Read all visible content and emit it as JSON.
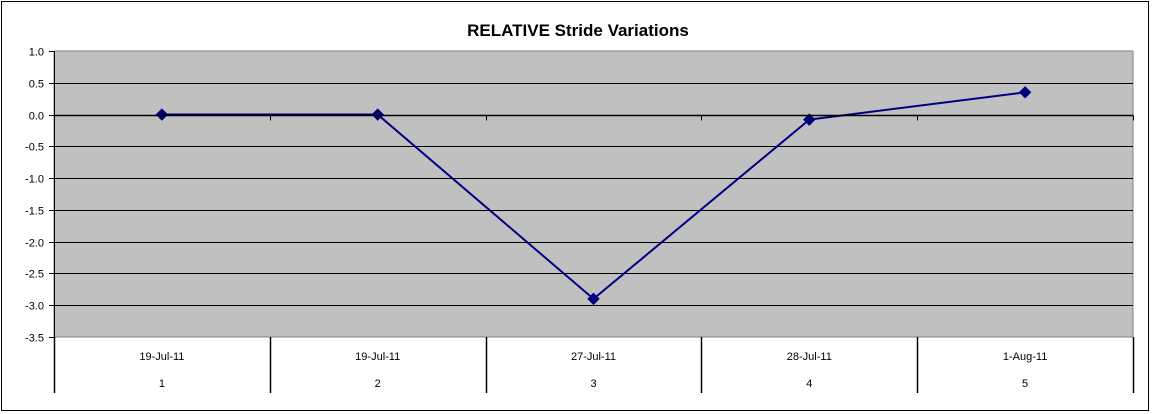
{
  "chart_data": {
    "type": "line",
    "title": "RELATIVE Stride Variations",
    "xlabel": "",
    "ylabel": "",
    "categories": [
      "1",
      "2",
      "3",
      "4",
      "5"
    ],
    "category_dates": [
      "19-Jul-11",
      "19-Jul-11",
      "27-Jul-11",
      "28-Jul-11",
      "1-Aug-11"
    ],
    "series": [
      {
        "values": [
          0.0,
          0.0,
          -2.9,
          -0.08,
          0.35
        ],
        "color": "#000080",
        "marker": "diamond"
      }
    ],
    "ylim": [
      -3.5,
      1.0
    ],
    "y_tick_step": 0.5,
    "y_tick_labels": [
      "1.0",
      "0.5",
      "0.0",
      "-0.5",
      "-1.0",
      "-1.5",
      "-2.0",
      "-2.5",
      "-3.0",
      "-3.5"
    ],
    "grid": true,
    "plot_background": "#c0c0c0",
    "legend": "none"
  }
}
